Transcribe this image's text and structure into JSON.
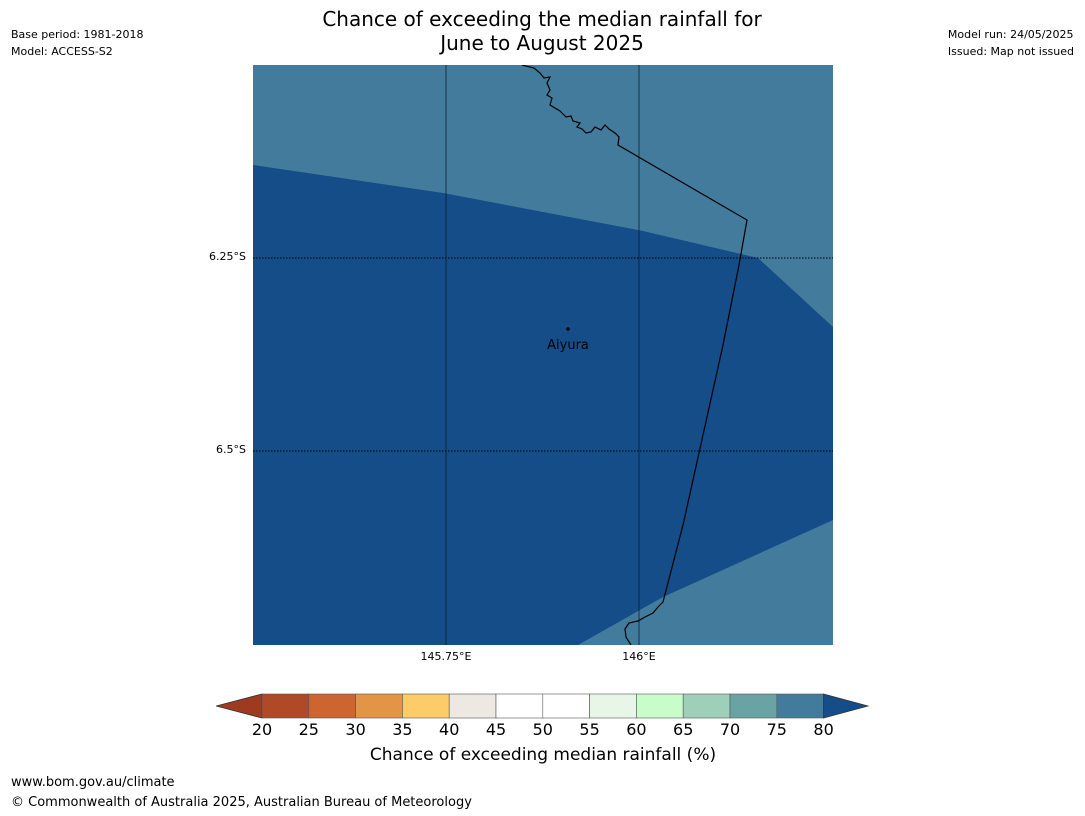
{
  "header": {
    "title_line1": "Chance of exceeding the median rainfall for",
    "title_line2": "June to August 2025",
    "base_period": "Base period: 1981-2018",
    "model": "Model: ACCESS-S2",
    "model_run": "Model run: 24/05/2025",
    "issued": "Issued: Map not issued"
  },
  "map": {
    "lat_labels": [
      "6.25°S",
      "6.5°S"
    ],
    "lon_labels": [
      "145.75°E",
      "146°E"
    ],
    "place": {
      "name": "Aiyura"
    },
    "colors": {
      "dark_blue": "#144d88",
      "mid_blue": "#427b9c"
    }
  },
  "colorbar": {
    "ticks": [
      "20",
      "25",
      "30",
      "35",
      "40",
      "45",
      "50",
      "55",
      "60",
      "65",
      "70",
      "75",
      "80"
    ],
    "colors": [
      "#b04a26",
      "#cc6530",
      "#e39444",
      "#fdcb68",
      "#eee8e2",
      "#ffffff",
      "#ffffff",
      "#e8f6e8",
      "#c8fcc8",
      "#9ecfb9",
      "#6aa3a4",
      "#427b9c"
    ],
    "low_extend_color": "#9e3a20",
    "high_extend_color": "#144d88",
    "label": "Chance of exceeding median rainfall (%)"
  },
  "footer": {
    "url": "www.bom.gov.au/climate",
    "copyright": "© Commonwealth of Australia 2025, Australian Bureau of Meteorology"
  }
}
